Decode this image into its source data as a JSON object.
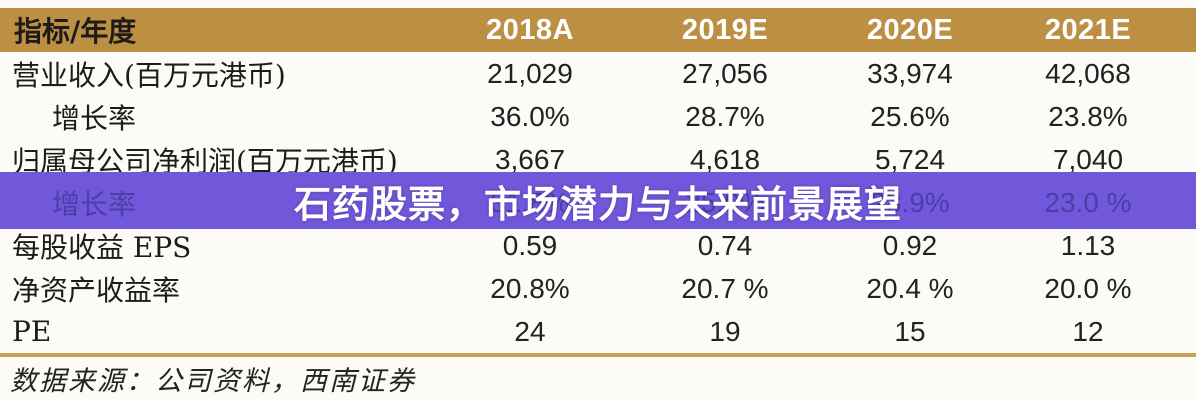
{
  "chart_data": {
    "type": "table",
    "columns": [
      "指标/年度",
      "2018A",
      "2019E",
      "2020E",
      "2021E"
    ],
    "rows": [
      [
        "营业收入(百万元港币)",
        "21,029",
        "27,056",
        "33,974",
        "42,068"
      ],
      [
        "增长率",
        "36.0%",
        "28.7%",
        "25.6%",
        "23.8%"
      ],
      [
        "归属母公司净利润(百万元港币)",
        "3,667",
        "4,618",
        "5,724",
        "7,040"
      ],
      [
        "增长率",
        "31.8%",
        "25.9%",
        "23.9%",
        "23.0 %"
      ],
      [
        "每股收益 EPS",
        "0.59",
        "0.74",
        "0.92",
        "1.13"
      ],
      [
        "净资产收益率",
        "20.8%",
        "20.7 %",
        "20.4 %",
        "20.0 %"
      ],
      [
        "PE",
        "24",
        "19",
        "15",
        "12"
      ]
    ],
    "title": "石药股票，市场潜力与未来前景展望",
    "source": "数据来源：公司资料，西南证券"
  },
  "banner": {
    "title": "石药股票，市场潜力与未来前景展望",
    "bg_color": "#7158da",
    "text_color": "#ffffff"
  },
  "table": {
    "header": {
      "label": "指标/年度",
      "years": [
        "2018A",
        "2019E",
        "2020E",
        "2021E"
      ],
      "bg_color": "#bc8f43",
      "text_color": "#ffffff"
    },
    "rows": [
      {
        "label": "营业收入(百万元港币)",
        "values": [
          "21,029",
          "27,056",
          "33,974",
          "42,068"
        ]
      },
      {
        "label": "增长率",
        "values": [
          "36.0%",
          "28.7%",
          "25.6%",
          "23.8%"
        ]
      },
      {
        "label": "归属母公司净利润(百万元港币)",
        "values": [
          "3,667",
          "4,618",
          "5,724",
          "7,040"
        ]
      },
      {
        "label": "增长率",
        "values": [
          "31.8%",
          "25.9%",
          "23.9%",
          "23.0 %"
        ]
      },
      {
        "label": "每股收益 EPS",
        "values": [
          "0.59",
          "0.74",
          "0.92",
          "1.13"
        ]
      },
      {
        "label": "净资产收益率",
        "values": [
          "20.8%",
          "20.7 %",
          "20.4 %",
          "20.0 %"
        ]
      },
      {
        "label": "PE",
        "values": [
          "24",
          "19",
          "15",
          "12"
        ]
      }
    ]
  },
  "source_note": "数据来源：公司资料，西南证券",
  "colors": {
    "header_gold": "#bc8f43",
    "rule_gold": "#c6a257",
    "banner_purple": "#7158da",
    "obscured_text_purple": "#4b3ea8",
    "body_text": "#222222",
    "background": "#fcfbf8"
  }
}
